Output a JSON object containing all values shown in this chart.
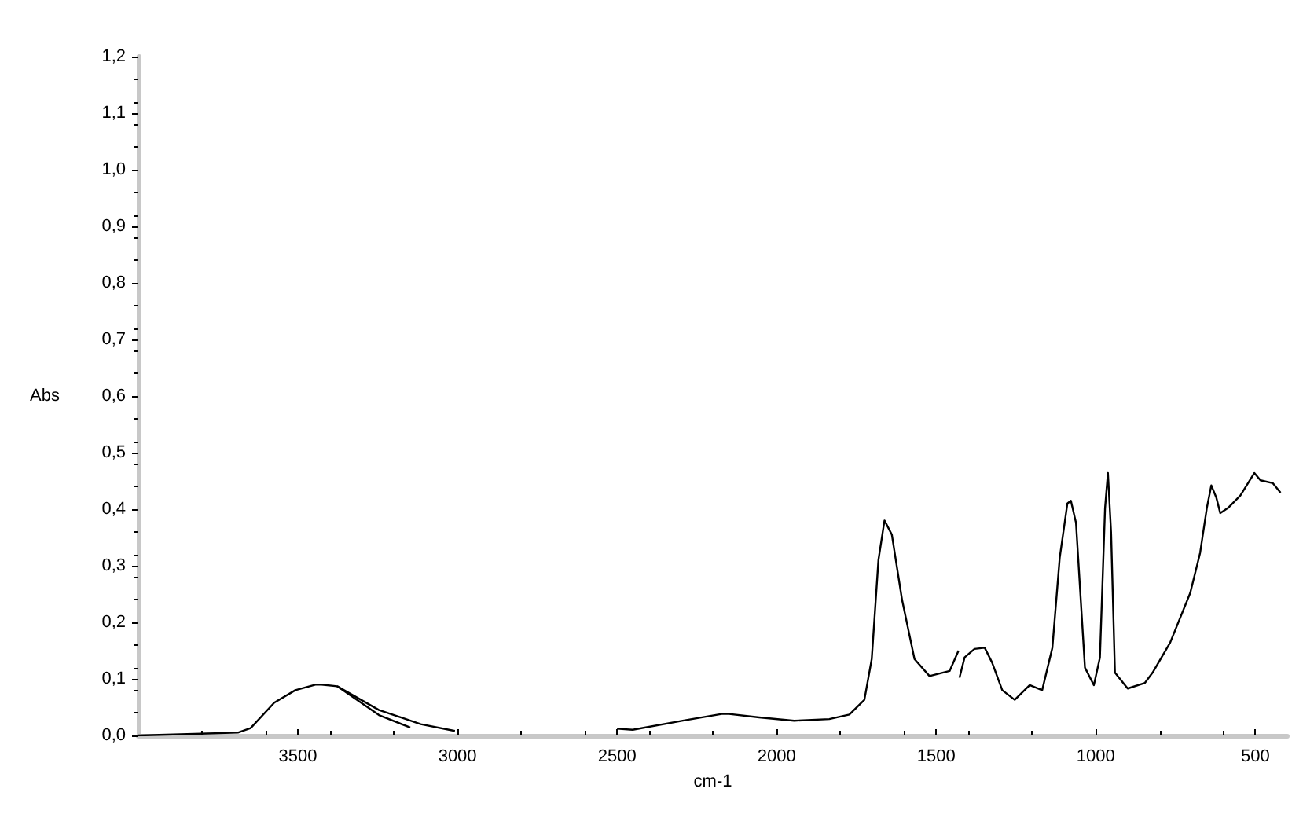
{
  "chart_data": {
    "type": "line",
    "xlabel": "cm-1",
    "ylabel": "Abs",
    "xlim": [
      4000,
      400
    ],
    "xticks": [
      3500,
      3000,
      2500,
      2000,
      1500,
      1000,
      500
    ],
    "ylim": [
      0,
      1.2
    ],
    "yticks": [
      {
        "value": 0,
        "label": "0,0"
      },
      {
        "value": 0.1,
        "label": "0,1"
      },
      {
        "value": 0.2,
        "label": "0,2"
      },
      {
        "value": 0.3,
        "label": "0,3"
      },
      {
        "value": 0.4,
        "label": "0,4"
      },
      {
        "value": 0.5,
        "label": "0,5"
      },
      {
        "value": 0.6,
        "label": "0,6"
      },
      {
        "value": 0.7,
        "label": "0,7"
      },
      {
        "value": 0.8,
        "label": "0,8"
      },
      {
        "value": 0.9,
        "label": "0,9"
      },
      {
        "value": 1,
        "label": "1,0"
      },
      {
        "value": 1.1,
        "label": "1,1"
      },
      {
        "value": 1.2,
        "label": "1,2"
      }
    ],
    "grid": false,
    "marker": "none",
    "line_style": "solid",
    "series": [
      {
        "color": "#000000",
        "x": [
          4000,
          3688,
          3648,
          3574,
          3508,
          3443,
          3426,
          3377,
          3246,
          3115,
          3008
        ],
        "values": [
          0,
          0.005,
          0.013,
          0.058,
          0.08,
          0.09,
          0.09,
          0.087,
          0.045,
          0.02,
          0.008
        ]
      },
      {
        "color": "#000000",
        "x": [
          3377,
          3246,
          3148,
          3066,
          2943,
          2779,
          2615,
          2525,
          2500,
          2451,
          2287,
          2172,
          2149,
          2055,
          1945,
          1835,
          1772,
          1725,
          1702,
          1681,
          1662,
          1639,
          1607,
          1568,
          1521,
          1458,
          1430
        ],
        "values": [
          0.087,
          0.036,
          0.014,
          null,
          null,
          null,
          null,
          null,
          0.012,
          0.01,
          0.027,
          0.038,
          0.038,
          0.032,
          0.026,
          0.029,
          0.037,
          0.063,
          0.135,
          0.31,
          0.38,
          0.355,
          0.24,
          0.135,
          0.105,
          0.114,
          0.15
        ]
      },
      {
        "color": "#000000",
        "x": [
          1427,
          1411,
          1380,
          1348,
          1325,
          1293,
          1254,
          1207,
          1168,
          1136,
          1113,
          1089,
          1078,
          1062,
          1034,
          1006,
          987,
          971,
          962,
          952,
          940,
          900,
          846,
          822,
          767,
          704,
          673,
          652,
          638,
          622,
          610,
          586,
          547,
          503,
          484,
          445,
          421
        ],
        "values": [
          0.102,
          0.138,
          0.153,
          0.155,
          0.129,
          0.08,
          0.063,
          0.089,
          0.08,
          0.155,
          0.314,
          0.41,
          0.415,
          0.376,
          0.12,
          0.089,
          0.138,
          0.402,
          0.464,
          0.358,
          0.111,
          0.083,
          0.093,
          0.111,
          0.164,
          0.252,
          0.323,
          0.402,
          0.442,
          0.42,
          0.393,
          0.402,
          0.424,
          0.464,
          0.451,
          0.446,
          0.429
        ]
      }
    ]
  }
}
